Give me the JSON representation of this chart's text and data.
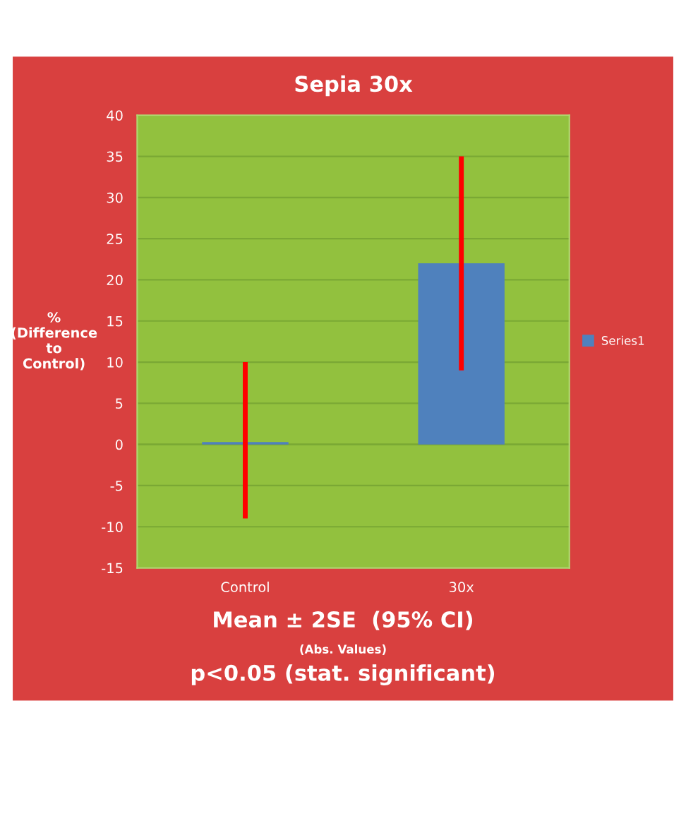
{
  "chart_data": {
    "type": "bar",
    "title": "Sepia 30x",
    "ylabel": "%\n(Difference\nto\nControl)",
    "categories": [
      "Control",
      "30x"
    ],
    "series": [
      {
        "name": "Series1",
        "color": "#4f81bd",
        "values": [
          0.3,
          22
        ],
        "errors": [
          [
            -9,
            10
          ],
          [
            9,
            35
          ]
        ]
      }
    ],
    "ylim": [
      -15,
      40
    ],
    "yticks": [
      -15,
      -10,
      -5,
      0,
      5,
      10,
      15,
      20,
      25,
      30,
      35,
      40
    ],
    "grid": "y",
    "legend": "right",
    "annotations": [
      "Mean ± 2SE  (95% CI)",
      "(Abs. Values)",
      "p<0.05 (stat. significant)"
    ]
  }
}
